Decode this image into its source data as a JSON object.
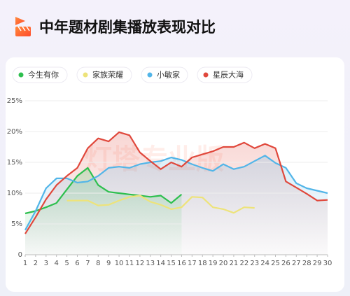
{
  "chart_data": {
    "type": "line",
    "title": "中年题材剧集播放表现对比",
    "watermark": "灯塔专业版",
    "x": [
      1,
      2,
      3,
      4,
      5,
      6,
      7,
      8,
      9,
      10,
      11,
      12,
      13,
      14,
      15,
      16,
      17,
      18,
      19,
      20,
      21,
      22,
      23,
      24,
      25,
      26,
      27,
      28,
      29,
      30
    ],
    "xlim": [
      1,
      30
    ],
    "xticks": [
      1,
      2,
      3,
      4,
      5,
      6,
      7,
      8,
      9,
      10,
      11,
      12,
      13,
      14,
      15,
      16,
      17,
      18,
      19,
      20,
      21,
      22,
      23,
      24,
      25,
      26,
      27,
      28,
      29,
      30
    ],
    "ylim": [
      0,
      25
    ],
    "yticks": [
      0,
      {
        "value": 5,
        "label": "5%"
      },
      {
        "value": 10,
        "label": "10%"
      },
      {
        "value": 15,
        "label": "15%"
      },
      {
        "value": 20,
        "label": "20%"
      },
      {
        "value": 25,
        "label": "25%"
      }
    ],
    "grid": true,
    "legend": "top-left",
    "series": [
      {
        "name": "今生有你",
        "color": "#2dbf4e",
        "fill": true,
        "values": [
          6.7,
          7.1,
          7.7,
          8.4,
          10.6,
          12.8,
          14.1,
          11.3,
          10.2,
          10.0,
          9.8,
          9.6,
          9.4,
          9.6,
          8.4,
          9.8,
          null,
          null,
          null,
          null,
          null,
          null,
          null,
          null,
          null,
          null,
          null,
          null,
          null,
          null
        ]
      },
      {
        "name": "家族荣耀",
        "color": "#ede37a",
        "fill": false,
        "values": [
          null,
          null,
          null,
          null,
          8.8,
          8.8,
          8.8,
          8.0,
          8.1,
          8.8,
          9.4,
          9.6,
          8.6,
          8.1,
          7.4,
          7.7,
          9.4,
          9.3,
          7.7,
          7.4,
          6.8,
          7.7,
          7.6,
          null,
          null,
          null,
          null,
          null,
          null,
          null
        ]
      },
      {
        "name": "小敏家",
        "color": "#52b5e8",
        "fill": true,
        "values": [
          4.0,
          7.1,
          10.8,
          12.4,
          12.4,
          11.7,
          11.9,
          12.8,
          14.1,
          14.3,
          14.1,
          14.7,
          15.0,
          15.2,
          15.8,
          15.4,
          14.7,
          14.1,
          13.6,
          14.7,
          13.9,
          14.3,
          15.2,
          16.1,
          14.9,
          14.1,
          11.6,
          10.8,
          10.4,
          10.0
        ]
      },
      {
        "name": "星辰大海",
        "color": "#e0483c",
        "fill": true,
        "values": [
          3.4,
          6.1,
          9.0,
          11.3,
          12.8,
          14.1,
          17.3,
          18.9,
          18.4,
          19.9,
          19.4,
          16.6,
          15.2,
          13.9,
          15.0,
          14.3,
          15.8,
          16.3,
          16.8,
          17.5,
          17.5,
          18.2,
          17.3,
          18.0,
          17.3,
          11.9,
          10.9,
          9.9,
          8.8,
          8.9
        ]
      }
    ]
  }
}
